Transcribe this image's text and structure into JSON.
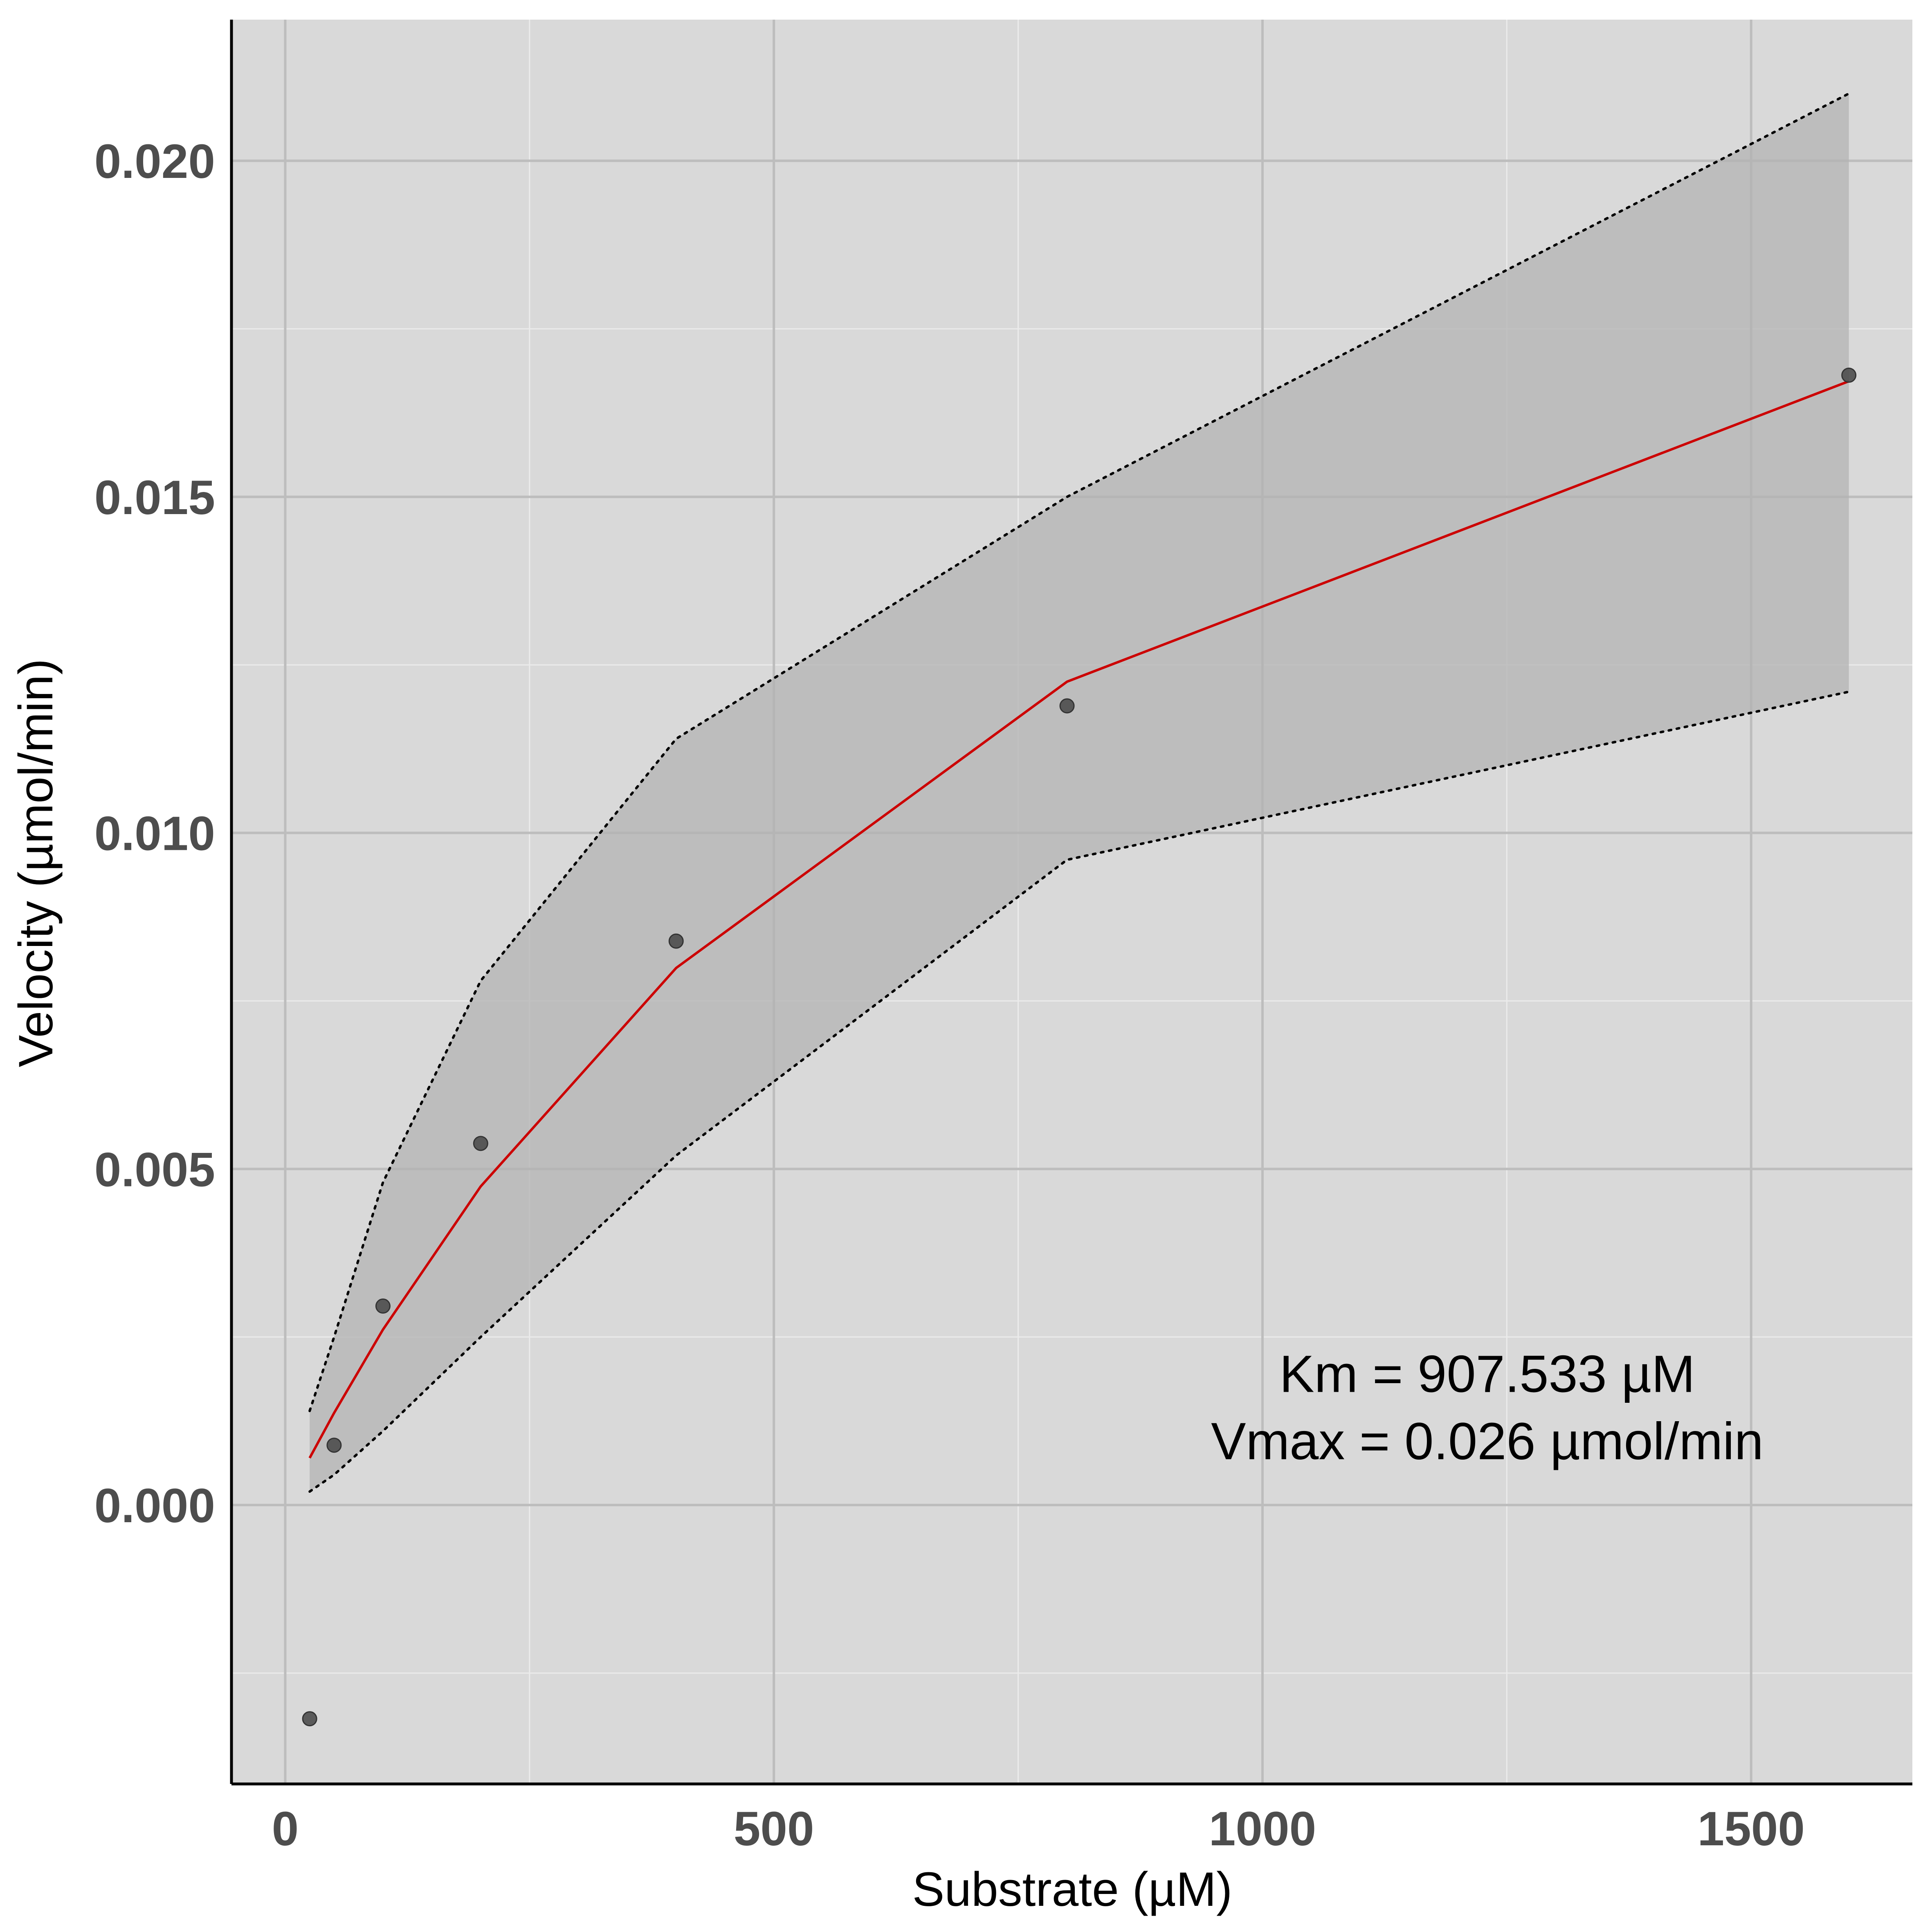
{
  "chart_data": {
    "type": "scatter",
    "xlabel": "Substrate (µM)",
    "ylabel": "Velocity (µmol/min)",
    "xlim": [
      -55,
      1665
    ],
    "ylim": [
      -0.00415,
      0.0221
    ],
    "x_ticks": [
      0,
      500,
      1000,
      1500
    ],
    "x_tick_labels": [
      "0",
      "500",
      "1000",
      "1500"
    ],
    "y_ticks": [
      0.0,
      0.005,
      0.01,
      0.015,
      0.02
    ],
    "y_tick_labels": [
      "0.000",
      "0.005",
      "0.010",
      "0.015",
      "0.020"
    ],
    "grid": true,
    "legend": "none",
    "points": {
      "x": [
        25,
        50,
        100,
        200,
        400,
        800,
        1600
      ],
      "y": [
        -0.00318,
        0.00089,
        0.00296,
        0.00538,
        0.00839,
        0.01189,
        0.01681
      ]
    },
    "fit_line": {
      "x": [
        25,
        50,
        100,
        200,
        400,
        800,
        1600
      ],
      "y": [
        0.0007,
        0.00137,
        0.00261,
        0.00474,
        0.00799,
        0.01225,
        0.01672
      ]
    },
    "confidence_band": {
      "x": [
        25,
        50,
        100,
        200,
        400,
        800,
        1600
      ],
      "upper": [
        0.0014,
        0.0025,
        0.0048,
        0.0078,
        0.0114,
        0.015,
        0.021
      ],
      "lower": [
        0.0002,
        0.00045,
        0.0011,
        0.0025,
        0.0052,
        0.0096,
        0.0121
      ]
    },
    "annotations": [
      {
        "text": "Km = 907.533 µM",
        "x": 1230,
        "y": 0.00195
      },
      {
        "text": "Vmax = 0.026 µmol/min",
        "x": 1230,
        "y": 0.00095
      }
    ],
    "colors": {
      "panel_background": "#d9d9d9",
      "grid_major": "#bdbdbd",
      "grid_minor": "#ebebeb",
      "band_fill": "#b3b3b3",
      "fit_line": "#cc0000",
      "points": "#4d4d4d",
      "band_edge": "#000000",
      "axis_line": "#000000"
    }
  }
}
